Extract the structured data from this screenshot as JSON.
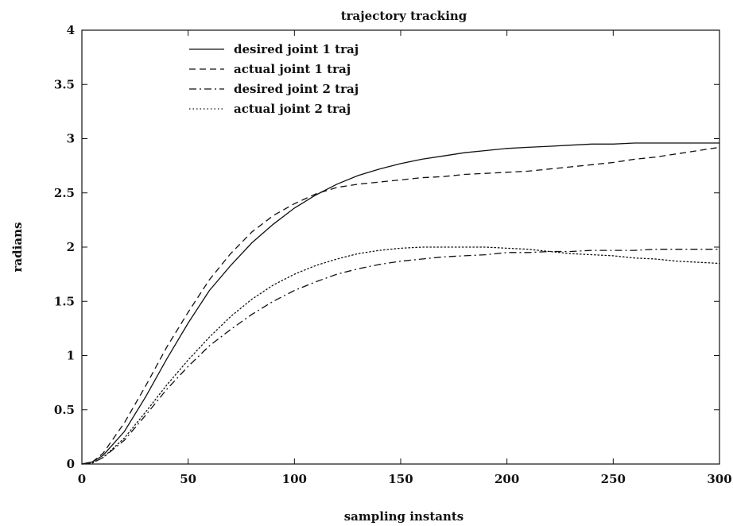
{
  "chart_data": {
    "type": "line",
    "title": "trajectory tracking",
    "xlabel": "sampling instants",
    "ylabel": "radians",
    "xlim": [
      0,
      300
    ],
    "ylim": [
      0,
      4
    ],
    "xticks": [
      "0",
      "50",
      "100",
      "150",
      "200",
      "250",
      "300"
    ],
    "yticks": [
      "0",
      "0.5",
      "1",
      "1.5",
      "2",
      "2.5",
      "3",
      "3.5",
      "4"
    ],
    "grid": false,
    "legend_position": "top-left",
    "x": [
      0,
      5,
      10,
      20,
      30,
      40,
      50,
      60,
      70,
      80,
      90,
      100,
      110,
      120,
      130,
      140,
      150,
      160,
      170,
      180,
      190,
      200,
      210,
      220,
      230,
      240,
      250,
      260,
      270,
      280,
      290,
      300
    ],
    "series": [
      {
        "name": "desired joint 1 traj",
        "style": "solid",
        "values": [
          0,
          0.02,
          0.08,
          0.3,
          0.62,
          0.97,
          1.3,
          1.6,
          1.83,
          2.04,
          2.21,
          2.36,
          2.48,
          2.58,
          2.66,
          2.72,
          2.77,
          2.81,
          2.84,
          2.87,
          2.89,
          2.91,
          2.92,
          2.93,
          2.94,
          2.95,
          2.95,
          2.96,
          2.96,
          2.96,
          2.96,
          2.96
        ]
      },
      {
        "name": "actual joint 1 traj",
        "style": "dashed",
        "values": [
          0,
          0.02,
          0.1,
          0.38,
          0.72,
          1.08,
          1.4,
          1.7,
          1.94,
          2.14,
          2.29,
          2.4,
          2.49,
          2.55,
          2.58,
          2.6,
          2.62,
          2.64,
          2.65,
          2.67,
          2.68,
          2.69,
          2.7,
          2.72,
          2.74,
          2.76,
          2.78,
          2.81,
          2.83,
          2.86,
          2.89,
          2.92
        ]
      },
      {
        "name": "desired joint 2 traj",
        "style": "dashdot",
        "values": [
          0,
          0.01,
          0.06,
          0.22,
          0.45,
          0.69,
          0.9,
          1.09,
          1.24,
          1.38,
          1.5,
          1.6,
          1.68,
          1.75,
          1.8,
          1.84,
          1.87,
          1.89,
          1.91,
          1.92,
          1.93,
          1.95,
          1.95,
          1.96,
          1.96,
          1.97,
          1.97,
          1.97,
          1.98,
          1.98,
          1.98,
          1.98
        ]
      },
      {
        "name": "actual joint 2 traj",
        "style": "dotted",
        "values": [
          0,
          0.01,
          0.06,
          0.24,
          0.48,
          0.73,
          0.96,
          1.17,
          1.36,
          1.52,
          1.65,
          1.75,
          1.83,
          1.89,
          1.94,
          1.97,
          1.99,
          2,
          2,
          2,
          2,
          1.99,
          1.98,
          1.96,
          1.94,
          1.93,
          1.92,
          1.9,
          1.89,
          1.87,
          1.86,
          1.85
        ]
      }
    ]
  }
}
